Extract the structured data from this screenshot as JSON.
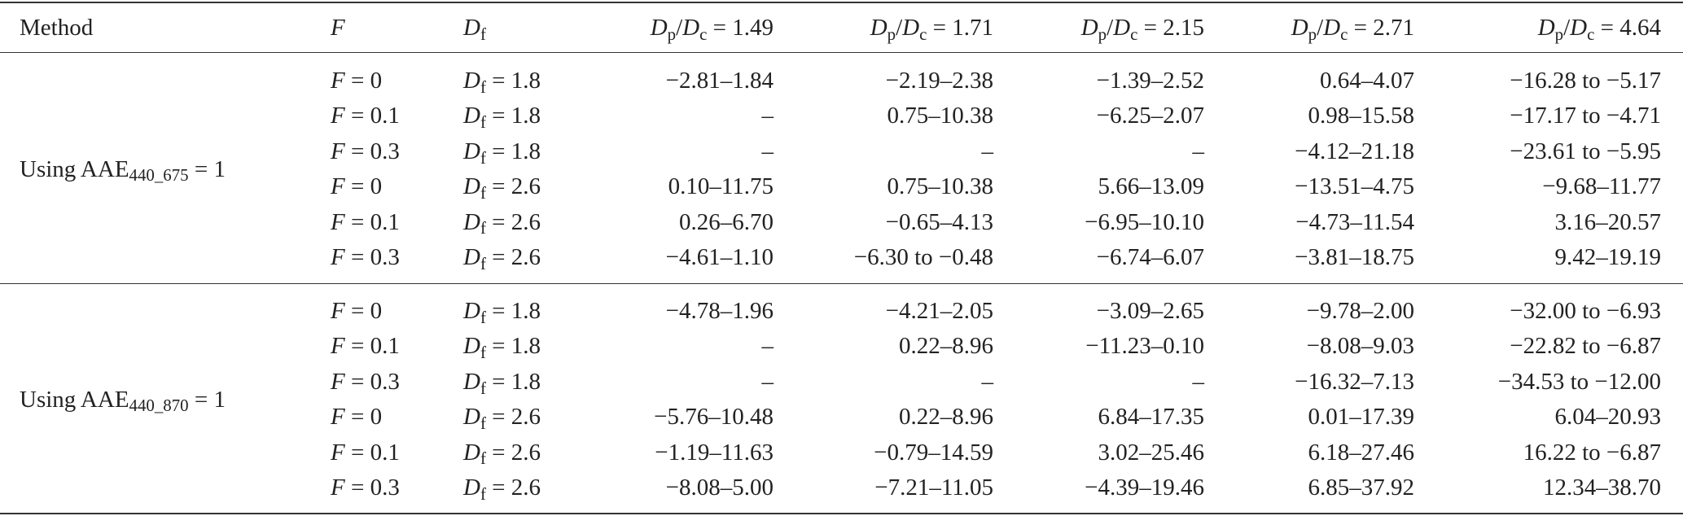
{
  "table": {
    "header": [
      [
        {
          "text": "Method"
        }
      ],
      [
        {
          "text": "F",
          "italic": true
        }
      ],
      [
        {
          "text": "D",
          "italic": true
        },
        {
          "text": "f",
          "sub": true
        }
      ],
      [
        {
          "text": "D",
          "italic": true
        },
        {
          "text": "p",
          "sub": true
        },
        {
          "text": "/"
        },
        {
          "text": "D",
          "italic": true
        },
        {
          "text": "c",
          "sub": true
        },
        {
          "text": " = 1.49"
        }
      ],
      [
        {
          "text": "D",
          "italic": true
        },
        {
          "text": "p",
          "sub": true
        },
        {
          "text": "/"
        },
        {
          "text": "D",
          "italic": true
        },
        {
          "text": "c",
          "sub": true
        },
        {
          "text": " = 1.71"
        }
      ],
      [
        {
          "text": "D",
          "italic": true
        },
        {
          "text": "p",
          "sub": true
        },
        {
          "text": "/"
        },
        {
          "text": "D",
          "italic": true
        },
        {
          "text": "c",
          "sub": true
        },
        {
          "text": " = 2.15"
        }
      ],
      [
        {
          "text": "D",
          "italic": true
        },
        {
          "text": "p",
          "sub": true
        },
        {
          "text": "/"
        },
        {
          "text": "D",
          "italic": true
        },
        {
          "text": "c",
          "sub": true
        },
        {
          "text": " = 2.71"
        }
      ],
      [
        {
          "text": "D",
          "italic": true
        },
        {
          "text": "p",
          "sub": true
        },
        {
          "text": "/"
        },
        {
          "text": "D",
          "italic": true
        },
        {
          "text": "c",
          "sub": true
        },
        {
          "text": " = 4.64"
        }
      ]
    ],
    "groups": [
      {
        "method": [
          {
            "text": "Using AAE"
          },
          {
            "text": "440_675",
            "sub": true
          },
          {
            "text": " = 1"
          }
        ],
        "rows": [
          {
            "F": [
              {
                "text": "F",
                "italic": true
              },
              {
                "text": " = 0"
              }
            ],
            "Df": [
              {
                "text": "D",
                "italic": true
              },
              {
                "text": "f",
                "sub": true
              },
              {
                "text": " = 1.8"
              }
            ],
            "values": [
              "−2.81–1.84",
              "−2.19–2.38",
              "−1.39–2.52",
              "0.64–4.07",
              "−16.28 to −5.17"
            ]
          },
          {
            "F": [
              {
                "text": "F",
                "italic": true
              },
              {
                "text": " = 0.1"
              }
            ],
            "Df": [
              {
                "text": "D",
                "italic": true
              },
              {
                "text": "f",
                "sub": true
              },
              {
                "text": " = 1.8"
              }
            ],
            "values": [
              "–",
              "0.75–10.38",
              "−6.25–2.07",
              "0.98–15.58",
              "−17.17 to −4.71"
            ]
          },
          {
            "F": [
              {
                "text": "F",
                "italic": true
              },
              {
                "text": " = 0.3"
              }
            ],
            "Df": [
              {
                "text": "D",
                "italic": true
              },
              {
                "text": "f",
                "sub": true
              },
              {
                "text": " = 1.8"
              }
            ],
            "values": [
              "–",
              "–",
              "–",
              "−4.12–21.18",
              "−23.61 to −5.95"
            ]
          },
          {
            "F": [
              {
                "text": "F",
                "italic": true
              },
              {
                "text": " = 0"
              }
            ],
            "Df": [
              {
                "text": "D",
                "italic": true
              },
              {
                "text": "f",
                "sub": true
              },
              {
                "text": " = 2.6"
              }
            ],
            "values": [
              "0.10–11.75",
              "0.75–10.38",
              "5.66–13.09",
              "−13.51–4.75",
              "−9.68–11.77"
            ]
          },
          {
            "F": [
              {
                "text": "F",
                "italic": true
              },
              {
                "text": " = 0.1"
              }
            ],
            "Df": [
              {
                "text": "D",
                "italic": true
              },
              {
                "text": "f",
                "sub": true
              },
              {
                "text": " = 2.6"
              }
            ],
            "values": [
              "0.26–6.70",
              "−0.65–4.13",
              "−6.95–10.10",
              "−4.73–11.54",
              "3.16–20.57"
            ]
          },
          {
            "F": [
              {
                "text": "F",
                "italic": true
              },
              {
                "text": " = 0.3"
              }
            ],
            "Df": [
              {
                "text": "D",
                "italic": true
              },
              {
                "text": "f",
                "sub": true
              },
              {
                "text": " = 2.6"
              }
            ],
            "values": [
              "−4.61–1.10",
              "−6.30 to −0.48",
              "−6.74–6.07",
              "−3.81–18.75",
              "9.42–19.19"
            ]
          }
        ]
      },
      {
        "method": [
          {
            "text": "Using AAE"
          },
          {
            "text": "440_870",
            "sub": true
          },
          {
            "text": " = 1"
          }
        ],
        "rows": [
          {
            "F": [
              {
                "text": "F",
                "italic": true
              },
              {
                "text": " = 0"
              }
            ],
            "Df": [
              {
                "text": "D",
                "italic": true
              },
              {
                "text": "f",
                "sub": true
              },
              {
                "text": " = 1.8"
              }
            ],
            "values": [
              "−4.78–1.96",
              "−4.21–2.05",
              "−3.09–2.65",
              "−9.78–2.00",
              "−32.00 to −6.93"
            ]
          },
          {
            "F": [
              {
                "text": "F",
                "italic": true
              },
              {
                "text": " = 0.1"
              }
            ],
            "Df": [
              {
                "text": "D",
                "italic": true
              },
              {
                "text": "f",
                "sub": true
              },
              {
                "text": " = 1.8"
              }
            ],
            "values": [
              "–",
              "0.22–8.96",
              "−11.23–0.10",
              "−8.08–9.03",
              "−22.82 to −6.87"
            ]
          },
          {
            "F": [
              {
                "text": "F",
                "italic": true
              },
              {
                "text": " = 0.3"
              }
            ],
            "Df": [
              {
                "text": "D",
                "italic": true
              },
              {
                "text": "f",
                "sub": true
              },
              {
                "text": " = 1.8"
              }
            ],
            "values": [
              "–",
              "–",
              "–",
              "−16.32–7.13",
              "−34.53 to −12.00"
            ]
          },
          {
            "F": [
              {
                "text": "F",
                "italic": true
              },
              {
                "text": " = 0"
              }
            ],
            "Df": [
              {
                "text": "D",
                "italic": true
              },
              {
                "text": "f",
                "sub": true
              },
              {
                "text": " = 2.6"
              }
            ],
            "values": [
              "−5.76–10.48",
              "0.22–8.96",
              "6.84–17.35",
              "0.01–17.39",
              "6.04–20.93"
            ]
          },
          {
            "F": [
              {
                "text": "F",
                "italic": true
              },
              {
                "text": " = 0.1"
              }
            ],
            "Df": [
              {
                "text": "D",
                "italic": true
              },
              {
                "text": "f",
                "sub": true
              },
              {
                "text": " = 2.6"
              }
            ],
            "values": [
              "−1.19–11.63",
              "−0.79–14.59",
              "3.02–25.46",
              "6.18–27.46",
              "16.22 to −6.87"
            ]
          },
          {
            "F": [
              {
                "text": "F",
                "italic": true
              },
              {
                "text": " = 0.3"
              }
            ],
            "Df": [
              {
                "text": "D",
                "italic": true
              },
              {
                "text": "f",
                "sub": true
              },
              {
                "text": " = 2.6"
              }
            ],
            "values": [
              "−8.08–5.00",
              "−7.21–11.05",
              "−4.39–19.46",
              "6.85–37.92",
              "12.34–38.70"
            ]
          }
        ]
      }
    ]
  }
}
